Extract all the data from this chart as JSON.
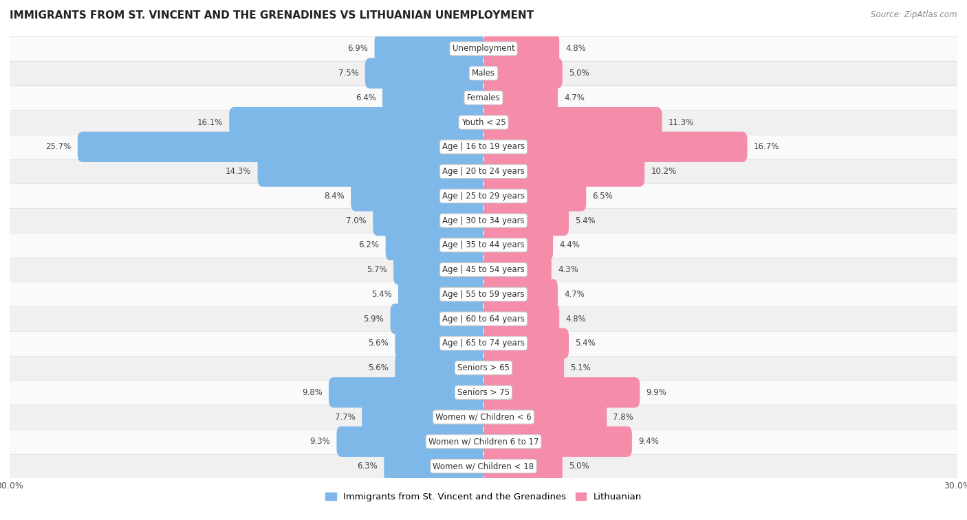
{
  "title": "IMMIGRANTS FROM ST. VINCENT AND THE GRENADINES VS LITHUANIAN UNEMPLOYMENT",
  "source": "Source: ZipAtlas.com",
  "categories": [
    "Unemployment",
    "Males",
    "Females",
    "Youth < 25",
    "Age | 16 to 19 years",
    "Age | 20 to 24 years",
    "Age | 25 to 29 years",
    "Age | 30 to 34 years",
    "Age | 35 to 44 years",
    "Age | 45 to 54 years",
    "Age | 55 to 59 years",
    "Age | 60 to 64 years",
    "Age | 65 to 74 years",
    "Seniors > 65",
    "Seniors > 75",
    "Women w/ Children < 6",
    "Women w/ Children 6 to 17",
    "Women w/ Children < 18"
  ],
  "left_values": [
    6.9,
    7.5,
    6.4,
    16.1,
    25.7,
    14.3,
    8.4,
    7.0,
    6.2,
    5.7,
    5.4,
    5.9,
    5.6,
    5.6,
    9.8,
    7.7,
    9.3,
    6.3
  ],
  "right_values": [
    4.8,
    5.0,
    4.7,
    11.3,
    16.7,
    10.2,
    6.5,
    5.4,
    4.4,
    4.3,
    4.7,
    4.8,
    5.4,
    5.1,
    9.9,
    7.8,
    9.4,
    5.0
  ],
  "left_color": "#7eb8e8",
  "right_color": "#f48caa",
  "left_label": "Immigrants from St. Vincent and the Grenadines",
  "right_label": "Lithuanian",
  "x_max": 30.0,
  "row_bg_odd": "#f0f0f0",
  "row_bg_even": "#fafafa"
}
